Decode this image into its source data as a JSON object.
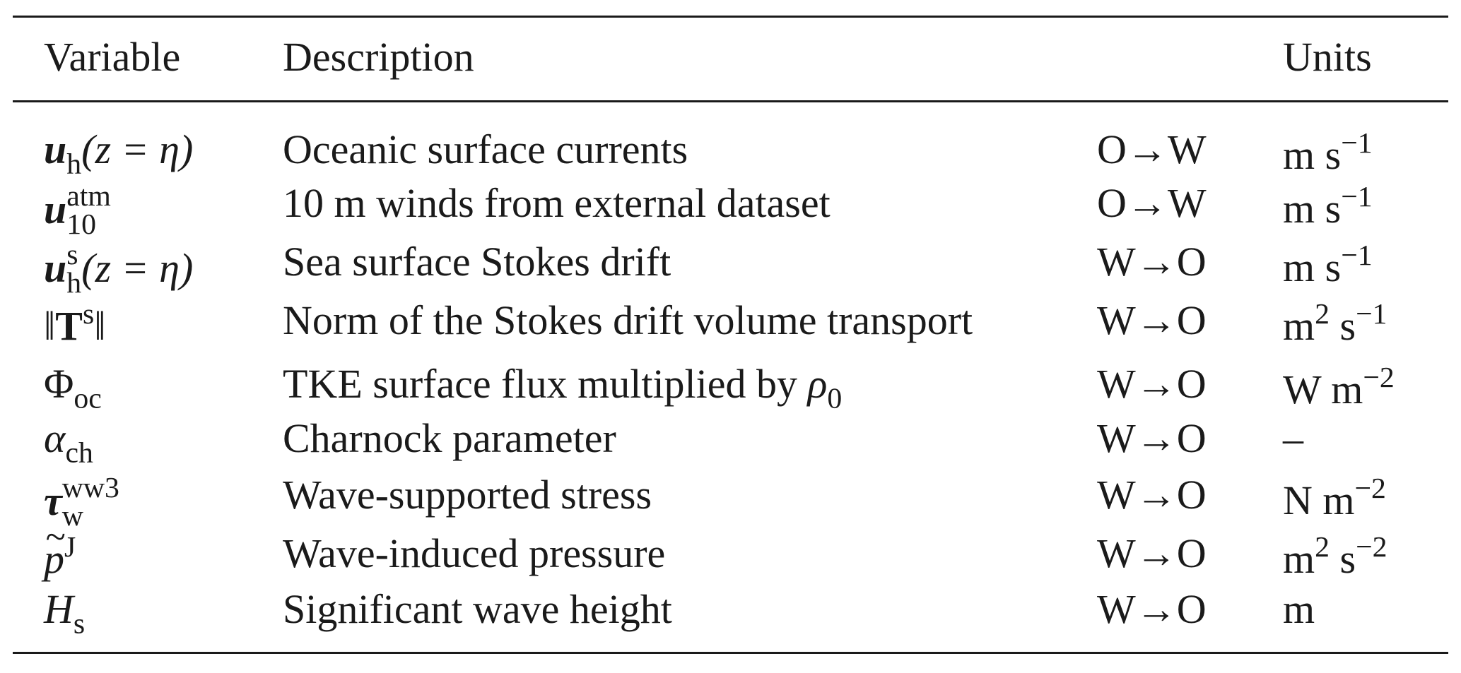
{
  "table": {
    "headers": {
      "variable": "Variable",
      "description": "Description",
      "direction": "",
      "units": "Units"
    },
    "rows": [
      {
        "var_main": "u",
        "var_sub": "h",
        "var_after": "(z = η)",
        "description": "Oceanic surface currents",
        "direction": "O→W",
        "unit_base": "m s",
        "unit_exp": "−1"
      },
      {
        "var_main": "u",
        "var_sup": "atm",
        "var_sub": "10",
        "description": "10 m winds from external dataset",
        "direction": "O→W",
        "unit_base": "m s",
        "unit_exp": "−1"
      },
      {
        "var_main": "u",
        "var_sup": "s",
        "var_sub": "h",
        "var_after": "(z = η)",
        "description": "Sea surface Stokes drift",
        "direction": "W→O",
        "unit_base": "m s",
        "unit_exp": "−1"
      },
      {
        "var_open": "‖",
        "var_main": "T",
        "var_sup": "s",
        "var_close": "‖",
        "description": "Norm of the Stokes drift volume transport",
        "direction": "W→O",
        "unit_a": "m",
        "unit_a_exp": "2",
        "unit_b": " s",
        "unit_b_exp": "−1"
      },
      {
        "var_main": "Φ",
        "var_sub": "oc",
        "description_text": "TKE surface flux multiplied by ",
        "description_sym": "ρ",
        "description_sub": "0",
        "direction": "W→O",
        "unit_base": "W m",
        "unit_exp": "−2"
      },
      {
        "var_main": "α",
        "var_sub": "ch",
        "description": "Charnock parameter",
        "direction": "W→O",
        "unit_base": "–"
      },
      {
        "var_main": "τ",
        "var_sup": "ww3",
        "var_sub": "w",
        "description": "Wave-supported stress",
        "direction": "W→O",
        "unit_base": "N m",
        "unit_exp": "−2"
      },
      {
        "var_main": "p",
        "var_sup": "J",
        "description": "Wave-induced pressure",
        "direction": "W→O",
        "unit_a": "m",
        "unit_a_exp": "2",
        "unit_b": " s",
        "unit_b_exp": "−2"
      },
      {
        "var_main": "H",
        "var_sub": "s",
        "description": "Significant wave height",
        "direction": "W→O",
        "unit_base": "m"
      }
    ]
  }
}
